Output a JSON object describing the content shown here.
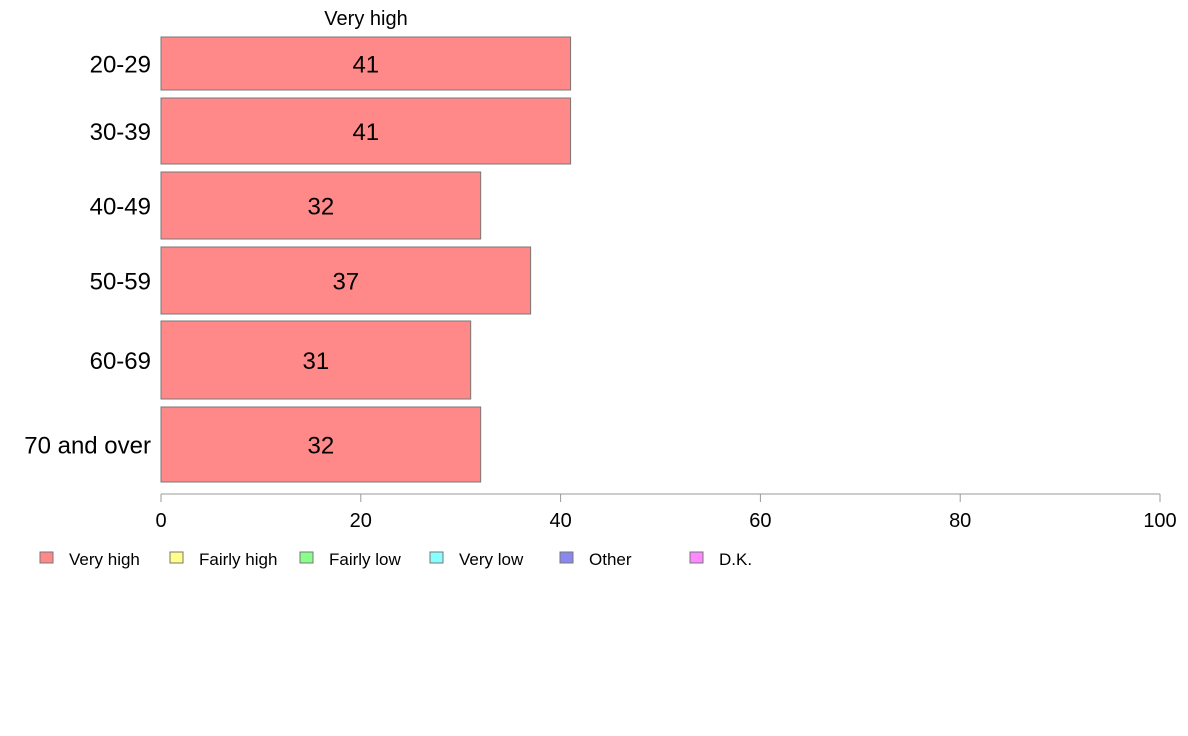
{
  "chart_data": {
    "type": "bar",
    "orientation": "horizontal",
    "series_title": "Very high",
    "categories": [
      "20-29",
      "30-39",
      "40-49",
      "50-59",
      "60-69",
      "70 and over"
    ],
    "series": [
      {
        "name": "Very high",
        "values": [
          41,
          41,
          32,
          37,
          31,
          32
        ],
        "color": "#ff8888"
      }
    ],
    "value_labels": [
      "41",
      "41",
      "32",
      "37",
      "31",
      "32"
    ],
    "xlim": [
      0,
      100
    ],
    "xticks": [
      "0",
      "20",
      "40",
      "60",
      "80",
      "100"
    ],
    "grid": false,
    "legend_position": "bottom-left",
    "legend": [
      {
        "label": "Very high",
        "color": "#ff8888"
      },
      {
        "label": "Fairly high",
        "color": "#ffff88"
      },
      {
        "label": "Fairly low",
        "color": "#88ff88"
      },
      {
        "label": "Very low",
        "color": "#88ffff"
      },
      {
        "label": "Other",
        "color": "#8888ee"
      },
      {
        "label": "D.K.",
        "color": "#ff88ff"
      }
    ]
  }
}
